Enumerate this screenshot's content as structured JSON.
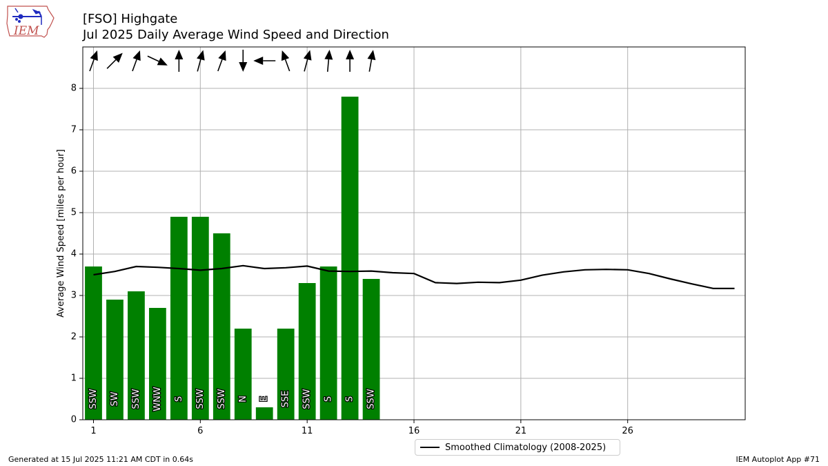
{
  "header": {
    "title_line1": "[FSO] Highgate",
    "title_line2": "Jul 2025 Daily Average Wind Speed and Direction"
  },
  "logo": {
    "text": "IEM"
  },
  "footer": {
    "left": "Generated at 15 Jul 2025 11:21 AM CDT in 0.64s",
    "right": "IEM Autoplot App #71"
  },
  "colors": {
    "bar": "#008000",
    "climatology": "#000000",
    "grid": "#b0b0b0"
  },
  "chart_data": {
    "type": "bar",
    "ylabel": "Average Wind Speed [miles per hour]",
    "xlim": [
      0.5,
      31.5
    ],
    "ylim": [
      0,
      9
    ],
    "xticks": [
      1,
      6,
      11,
      16,
      21,
      26
    ],
    "yticks": [
      0,
      1,
      2,
      3,
      4,
      5,
      6,
      7,
      8
    ],
    "grid": true,
    "legend_position": "bottom-center, below plot",
    "series": [
      {
        "type": "bar",
        "x": [
          1,
          2,
          3,
          4,
          5,
          6,
          7,
          8,
          9,
          10,
          11,
          12,
          13,
          14
        ],
        "values": [
          3.7,
          2.9,
          3.1,
          2.7,
          4.9,
          4.9,
          4.5,
          2.2,
          0.3,
          2.2,
          3.3,
          3.7,
          7.8,
          3.4
        ],
        "direction_labels": [
          "SSW",
          "SW",
          "SSW",
          "WNW",
          "S",
          "SSW",
          "SSW",
          "N",
          "E",
          "SSE",
          "SSW",
          "S",
          "S",
          "SSW"
        ],
        "direction_degrees": [
          200,
          225,
          200,
          295,
          180,
          195,
          200,
          0,
          90,
          160,
          195,
          185,
          180,
          190
        ]
      },
      {
        "name": "Smoothed Climatology (2008-2025)",
        "type": "line",
        "x": [
          1,
          2,
          3,
          4,
          5,
          6,
          7,
          8,
          9,
          10,
          11,
          12,
          13,
          14,
          15,
          16,
          17,
          18,
          19,
          20,
          21,
          22,
          23,
          24,
          25,
          26,
          27,
          28,
          29,
          30,
          31
        ],
        "values": [
          3.5,
          3.58,
          3.7,
          3.68,
          3.65,
          3.61,
          3.65,
          3.72,
          3.65,
          3.67,
          3.71,
          3.59,
          3.58,
          3.59,
          3.55,
          3.53,
          3.31,
          3.29,
          3.32,
          3.31,
          3.37,
          3.49,
          3.57,
          3.62,
          3.63,
          3.62,
          3.53,
          3.4,
          3.28,
          3.17,
          3.17
        ]
      }
    ]
  }
}
